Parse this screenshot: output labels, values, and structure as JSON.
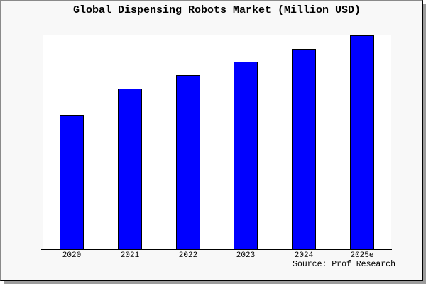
{
  "figure": {
    "background_color": "#f8f8f8",
    "plot_background_color": "#ffffff",
    "shadow_color": "#9c9c9c"
  },
  "chart_data": {
    "type": "bar",
    "title": "Global Dispensing Robots Market (Million USD)",
    "categories": [
      "2020",
      "2021",
      "2022",
      "2023",
      "2024",
      "2025e"
    ],
    "values": [
      62.8,
      75.1,
      81.4,
      87.7,
      93.7,
      100
    ],
    "values_note": "no numeric y-axis shown in image; values are relative bar heights normalized to 2025e = 100",
    "xlabel": "",
    "ylabel": "",
    "ylim": [
      0,
      100
    ],
    "grid": false,
    "legend_position": "none",
    "bar_color": "#0000ff",
    "bar_edge_color": "#000000",
    "source": "Source: Prof Research"
  }
}
